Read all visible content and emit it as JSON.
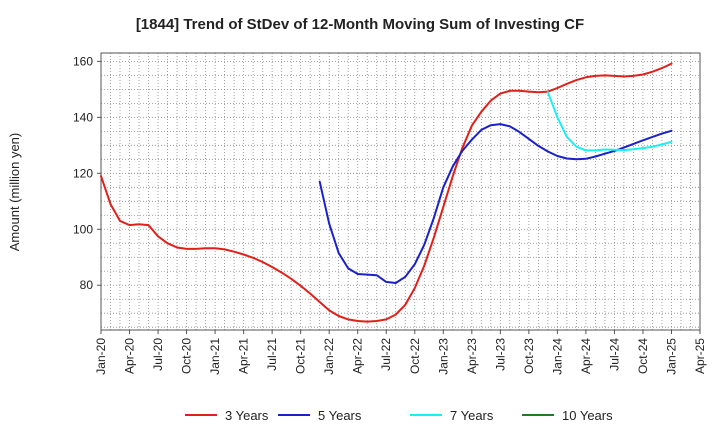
{
  "chart_data": {
    "type": "line",
    "title": "[1844]  Trend of StDev of 12-Month Moving Sum of Investing CF",
    "ylabel": "Amount (million yen)",
    "xlabel": "",
    "x_ticks": [
      "Jan-20",
      "Apr-20",
      "Jul-20",
      "Oct-20",
      "Jan-21",
      "Apr-21",
      "Jul-21",
      "Oct-21",
      "Jan-22",
      "Apr-22",
      "Jul-22",
      "Oct-22",
      "Jan-23",
      "Apr-23",
      "Jul-23",
      "Oct-23",
      "Jan-24",
      "Apr-24",
      "Jul-24",
      "Oct-24",
      "Jan-25",
      "Apr-25"
    ],
    "y_ticks": [
      80,
      100,
      120,
      140,
      160
    ],
    "ylim": [
      64,
      163
    ],
    "grid": true,
    "legend_position": "bottom",
    "x_range_months": [
      0,
      63
    ],
    "series": [
      {
        "name": "3 Years",
        "color": "#e0201b",
        "points": [
          [
            0,
            119
          ],
          [
            1,
            109
          ],
          [
            2,
            103
          ],
          [
            3,
            101.5
          ],
          [
            4,
            101.8
          ],
          [
            5,
            101.5
          ],
          [
            6,
            97.5
          ],
          [
            7,
            95
          ],
          [
            8,
            93.5
          ],
          [
            9,
            93
          ],
          [
            10,
            93
          ],
          [
            11,
            93.2
          ],
          [
            12,
            93.2
          ],
          [
            13,
            92.8
          ],
          [
            14,
            92
          ],
          [
            15,
            91
          ],
          [
            16,
            89.8
          ],
          [
            17,
            88.3
          ],
          [
            18,
            86.5
          ],
          [
            19,
            84.5
          ],
          [
            20,
            82.3
          ],
          [
            21,
            79.8
          ],
          [
            22,
            77
          ],
          [
            23,
            74
          ],
          [
            24,
            71
          ],
          [
            25,
            69
          ],
          [
            26,
            67.8
          ],
          [
            27,
            67.2
          ],
          [
            28,
            67
          ],
          [
            29,
            67.2
          ],
          [
            30,
            67.8
          ],
          [
            31,
            69.5
          ],
          [
            32,
            73
          ],
          [
            33,
            79
          ],
          [
            34,
            87
          ],
          [
            35,
            97
          ],
          [
            36,
            108
          ],
          [
            37,
            119
          ],
          [
            38,
            129
          ],
          [
            39,
            137
          ],
          [
            40,
            142
          ],
          [
            41,
            146
          ],
          [
            42,
            148.5
          ],
          [
            43,
            149.5
          ],
          [
            44,
            149.5
          ],
          [
            45,
            149.2
          ],
          [
            46,
            149
          ],
          [
            47,
            149.2
          ],
          [
            48,
            150.5
          ],
          [
            49,
            152
          ],
          [
            50,
            153.3
          ],
          [
            51,
            154.3
          ],
          [
            52,
            154.8
          ],
          [
            53,
            155
          ],
          [
            54,
            154.8
          ],
          [
            55,
            154.6
          ],
          [
            56,
            154.8
          ],
          [
            57,
            155.3
          ],
          [
            58,
            156.3
          ],
          [
            59,
            157.6
          ],
          [
            60,
            159.2
          ]
        ]
      },
      {
        "name": "5 Years",
        "color": "#1a21c8",
        "points": [
          [
            23,
            117
          ],
          [
            24,
            102
          ],
          [
            25,
            91.5
          ],
          [
            26,
            86
          ],
          [
            27,
            84
          ],
          [
            28,
            83.8
          ],
          [
            29,
            83.6
          ],
          [
            30,
            81.2
          ],
          [
            31,
            80.8
          ],
          [
            32,
            83
          ],
          [
            33,
            87.5
          ],
          [
            34,
            94.5
          ],
          [
            35,
            104
          ],
          [
            36,
            115
          ],
          [
            37,
            122.5
          ],
          [
            38,
            128
          ],
          [
            39,
            132
          ],
          [
            40,
            135.5
          ],
          [
            41,
            137.2
          ],
          [
            42,
            137.6
          ],
          [
            43,
            136.8
          ],
          [
            44,
            134.8
          ],
          [
            45,
            132.3
          ],
          [
            46,
            129.8
          ],
          [
            47,
            127.8
          ],
          [
            48,
            126.2
          ],
          [
            49,
            125.3
          ],
          [
            50,
            125
          ],
          [
            51,
            125.2
          ],
          [
            52,
            126
          ],
          [
            53,
            127
          ],
          [
            54,
            128
          ],
          [
            55,
            129.2
          ],
          [
            56,
            130.5
          ],
          [
            57,
            131.8
          ],
          [
            58,
            133
          ],
          [
            59,
            134.2
          ],
          [
            60,
            135.2
          ]
        ]
      },
      {
        "name": "7 Years",
        "color": "#19f0f0",
        "points": [
          [
            47,
            149
          ],
          [
            48,
            140
          ],
          [
            49,
            133
          ],
          [
            50,
            129.5
          ],
          [
            51,
            128.2
          ],
          [
            52,
            128.2
          ],
          [
            53,
            128.5
          ],
          [
            54,
            128.4
          ],
          [
            55,
            128.3
          ],
          [
            56,
            128.6
          ],
          [
            57,
            129
          ],
          [
            58,
            129.5
          ],
          [
            59,
            130.3
          ],
          [
            60,
            131.3
          ]
        ]
      },
      {
        "name": "10 Years",
        "color": "#1e7d1e",
        "points": []
      }
    ]
  }
}
